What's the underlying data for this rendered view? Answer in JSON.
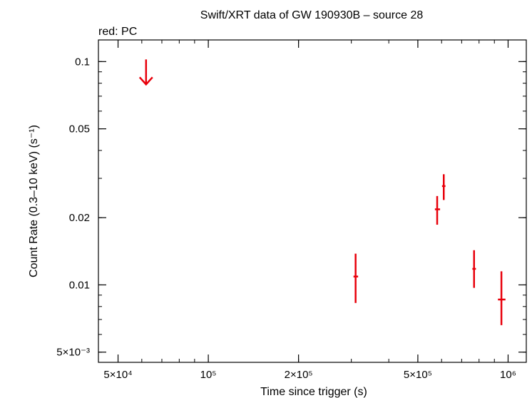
{
  "chart_data": {
    "type": "scatter",
    "title": "Swift/XRT data of GW 190930B – source 28",
    "subtitle": "red: PC",
    "xlabel": "Time since trigger (s)",
    "ylabel": "Count Rate (0.3–10 keV) (s⁻¹)",
    "x_scale": "log",
    "y_scale": "log",
    "xlim": [
      43000,
      1150000
    ],
    "ylim": [
      0.0045,
      0.125
    ],
    "x_ticks": [
      {
        "value": 50000,
        "label": "5×10⁴"
      },
      {
        "value": 100000,
        "label": "10⁵"
      },
      {
        "value": 200000,
        "label": "2×10⁵"
      },
      {
        "value": 500000,
        "label": "5×10⁵"
      },
      {
        "value": 1000000,
        "label": "10⁶"
      }
    ],
    "y_ticks": [
      {
        "value": 0.1,
        "label": "0.1"
      },
      {
        "value": 0.05,
        "label": "0.05"
      },
      {
        "value": 0.02,
        "label": "0.02"
      },
      {
        "value": 0.01,
        "label": "0.01"
      },
      {
        "value": 0.005,
        "label": "5×10⁻³"
      }
    ],
    "series": [
      {
        "color": "#e8000b",
        "upper_limits": [
          {
            "x": 62000,
            "y": 0.1
          }
        ],
        "points": [
          {
            "x": 310000,
            "xerr": [
              305000,
              316000
            ],
            "y": 0.0109,
            "ylo": 0.0083,
            "yhi": 0.0138
          },
          {
            "x": 580000,
            "xerr": [
              570000,
              593000
            ],
            "y": 0.0218,
            "ylo": 0.0186,
            "yhi": 0.025
          },
          {
            "x": 610000,
            "xerr": [
              602000,
              618000
            ],
            "y": 0.0277,
            "ylo": 0.024,
            "yhi": 0.0313
          },
          {
            "x": 770000,
            "xerr": [
              760000,
              781000
            ],
            "y": 0.0118,
            "ylo": 0.0097,
            "yhi": 0.0143
          },
          {
            "x": 950000,
            "xerr": [
              925000,
              980000
            ],
            "y": 0.0086,
            "ylo": 0.0066,
            "yhi": 0.0115
          }
        ]
      }
    ]
  }
}
